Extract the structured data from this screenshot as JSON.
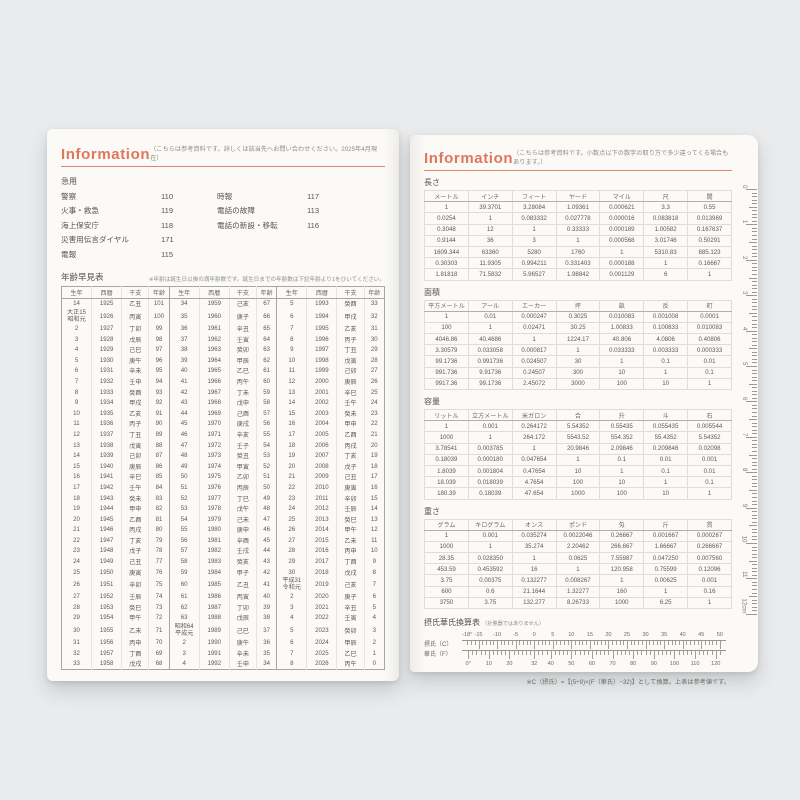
{
  "accent_color": "#e0765b",
  "background_color": "#e9ebec",
  "left_page": {
    "title": "Information",
    "note": "（こちらは参考資料です。詳しくは該当先へお問い合わせください。2025年4月現在）",
    "emergency": {
      "title": "急用",
      "items_left": [
        [
          "警察",
          "110"
        ],
        [
          "火事・救急",
          "119"
        ],
        [
          "海上保安庁",
          "118"
        ],
        [
          "災害用伝言ダイヤル",
          "171"
        ],
        [
          "電報",
          "115"
        ]
      ],
      "items_right": [
        [
          "時報",
          "117"
        ],
        [
          "電話の故障",
          "113"
        ],
        [
          "電話の新設・移転",
          "116"
        ]
      ]
    },
    "age_table": {
      "title": "年齢早見表",
      "note": "※年齢は誕生日以後の満年齢数です。誕生日までの年齢数は下記年齢より1をひいてください。",
      "headers": [
        "生年",
        "西暦",
        "干支",
        "年齢"
      ],
      "columns": [
        [
          [
            "14",
            "1925",
            "乙丑",
            "101"
          ],
          [
            "大正15\n昭和元",
            "1926",
            "丙寅",
            "100"
          ],
          [
            "2",
            "1927",
            "丁卯",
            "99"
          ],
          [
            "3",
            "1928",
            "戊辰",
            "98"
          ],
          [
            "4",
            "1929",
            "己巳",
            "97"
          ],
          [
            "5",
            "1930",
            "庚午",
            "96"
          ],
          [
            "6",
            "1931",
            "辛未",
            "95"
          ],
          [
            "7",
            "1932",
            "壬申",
            "94"
          ],
          [
            "8",
            "1933",
            "癸酉",
            "93"
          ],
          [
            "9",
            "1934",
            "甲戌",
            "92"
          ],
          [
            "10",
            "1935",
            "乙亥",
            "91"
          ],
          [
            "11",
            "1936",
            "丙子",
            "90"
          ],
          [
            "12",
            "1937",
            "丁丑",
            "89"
          ],
          [
            "13",
            "1938",
            "戊寅",
            "88"
          ],
          [
            "14",
            "1939",
            "己卯",
            "87"
          ],
          [
            "15",
            "1940",
            "庚辰",
            "86"
          ],
          [
            "16",
            "1941",
            "辛巳",
            "85"
          ],
          [
            "17",
            "1942",
            "壬午",
            "84"
          ],
          [
            "18",
            "1943",
            "癸未",
            "83"
          ],
          [
            "19",
            "1944",
            "甲申",
            "82"
          ],
          [
            "20",
            "1945",
            "乙酉",
            "81"
          ],
          [
            "21",
            "1946",
            "丙戌",
            "80"
          ],
          [
            "22",
            "1947",
            "丁亥",
            "79"
          ],
          [
            "23",
            "1948",
            "戊子",
            "78"
          ],
          [
            "24",
            "1949",
            "己丑",
            "77"
          ],
          [
            "25",
            "1950",
            "庚寅",
            "76"
          ],
          [
            "26",
            "1951",
            "辛卯",
            "75"
          ],
          [
            "27",
            "1952",
            "壬辰",
            "74"
          ],
          [
            "28",
            "1953",
            "癸巳",
            "73"
          ],
          [
            "29",
            "1954",
            "甲午",
            "72"
          ],
          [
            "30",
            "1955",
            "乙未",
            "71"
          ],
          [
            "31",
            "1956",
            "丙申",
            "70"
          ],
          [
            "32",
            "1957",
            "丁酉",
            "69"
          ],
          [
            "33",
            "1958",
            "戊戌",
            "68"
          ]
        ],
        [
          [
            "34",
            "1959",
            "己亥",
            "67"
          ],
          [
            "35",
            "1960",
            "庚子",
            "66"
          ],
          [
            "36",
            "1961",
            "辛丑",
            "65"
          ],
          [
            "37",
            "1962",
            "壬寅",
            "64"
          ],
          [
            "38",
            "1963",
            "癸卯",
            "63"
          ],
          [
            "39",
            "1964",
            "甲辰",
            "62"
          ],
          [
            "40",
            "1965",
            "乙巳",
            "61"
          ],
          [
            "41",
            "1966",
            "丙午",
            "60"
          ],
          [
            "42",
            "1967",
            "丁未",
            "59"
          ],
          [
            "43",
            "1968",
            "戊申",
            "58"
          ],
          [
            "44",
            "1969",
            "己酉",
            "57"
          ],
          [
            "45",
            "1970",
            "庚戌",
            "56"
          ],
          [
            "46",
            "1971",
            "辛亥",
            "55"
          ],
          [
            "47",
            "1972",
            "壬子",
            "54"
          ],
          [
            "48",
            "1973",
            "癸丑",
            "53"
          ],
          [
            "49",
            "1974",
            "甲寅",
            "52"
          ],
          [
            "50",
            "1975",
            "乙卯",
            "51"
          ],
          [
            "51",
            "1976",
            "丙辰",
            "50"
          ],
          [
            "52",
            "1977",
            "丁巳",
            "49"
          ],
          [
            "53",
            "1978",
            "戊午",
            "48"
          ],
          [
            "54",
            "1979",
            "己未",
            "47"
          ],
          [
            "55",
            "1980",
            "庚申",
            "46"
          ],
          [
            "56",
            "1981",
            "辛酉",
            "45"
          ],
          [
            "57",
            "1982",
            "壬戌",
            "44"
          ],
          [
            "58",
            "1983",
            "癸亥",
            "43"
          ],
          [
            "59",
            "1984",
            "甲子",
            "42"
          ],
          [
            "60",
            "1985",
            "乙丑",
            "41"
          ],
          [
            "61",
            "1986",
            "丙寅",
            "40"
          ],
          [
            "62",
            "1987",
            "丁卯",
            "39"
          ],
          [
            "63",
            "1988",
            "戊辰",
            "38"
          ],
          [
            "昭和64\n平成元",
            "1989",
            "己巳",
            "37"
          ],
          [
            "2",
            "1990",
            "庚午",
            "36"
          ],
          [
            "3",
            "1991",
            "辛未",
            "35"
          ],
          [
            "4",
            "1992",
            "壬申",
            "34"
          ]
        ],
        [
          [
            "5",
            "1993",
            "癸酉",
            "33"
          ],
          [
            "6",
            "1994",
            "甲戌",
            "32"
          ],
          [
            "7",
            "1995",
            "乙亥",
            "31"
          ],
          [
            "8",
            "1996",
            "丙子",
            "30"
          ],
          [
            "9",
            "1997",
            "丁丑",
            "29"
          ],
          [
            "10",
            "1998",
            "戊寅",
            "28"
          ],
          [
            "11",
            "1999",
            "己卯",
            "27"
          ],
          [
            "12",
            "2000",
            "庚辰",
            "26"
          ],
          [
            "13",
            "2001",
            "辛巳",
            "25"
          ],
          [
            "14",
            "2002",
            "壬午",
            "24"
          ],
          [
            "15",
            "2003",
            "癸未",
            "23"
          ],
          [
            "16",
            "2004",
            "甲申",
            "22"
          ],
          [
            "17",
            "2005",
            "乙酉",
            "21"
          ],
          [
            "18",
            "2006",
            "丙戌",
            "20"
          ],
          [
            "19",
            "2007",
            "丁亥",
            "19"
          ],
          [
            "20",
            "2008",
            "戊子",
            "18"
          ],
          [
            "21",
            "2009",
            "己丑",
            "17"
          ],
          [
            "22",
            "2010",
            "庚寅",
            "16"
          ],
          [
            "23",
            "2011",
            "辛卯",
            "15"
          ],
          [
            "24",
            "2012",
            "壬辰",
            "14"
          ],
          [
            "25",
            "2013",
            "癸巳",
            "13"
          ],
          [
            "26",
            "2014",
            "甲午",
            "12"
          ],
          [
            "27",
            "2015",
            "乙未",
            "11"
          ],
          [
            "28",
            "2016",
            "丙申",
            "10"
          ],
          [
            "29",
            "2017",
            "丁酉",
            "9"
          ],
          [
            "30",
            "2018",
            "戊戌",
            "8"
          ],
          [
            "平成31\n令和元",
            "2019",
            "己亥",
            "7"
          ],
          [
            "2",
            "2020",
            "庚子",
            "6"
          ],
          [
            "3",
            "2021",
            "辛丑",
            "5"
          ],
          [
            "4",
            "2022",
            "壬寅",
            "4"
          ],
          [
            "5",
            "2023",
            "癸卯",
            "3"
          ],
          [
            "6",
            "2024",
            "甲辰",
            "2"
          ],
          [
            "7",
            "2025",
            "乙巳",
            "1"
          ],
          [
            "8",
            "2026",
            "丙午",
            "0"
          ]
        ]
      ]
    }
  },
  "right_page": {
    "title": "Information",
    "note": "（こちらは参考資料です。小数点以下の数字の取り方で多少違ってくる場合もあります。）",
    "unit_tables": [
      {
        "title": "長さ",
        "headers": [
          "メートル",
          "インチ",
          "フィート",
          "ヤード",
          "マイル",
          "尺",
          "間"
        ],
        "rows": [
          [
            "1",
            "39.3701",
            "3.28084",
            "1.09361",
            "0.000621",
            "3.3",
            "0.55"
          ],
          [
            "0.0254",
            "1",
            "0.083332",
            "0.027778",
            "0.000016",
            "0.083818",
            "0.013969"
          ],
          [
            "0.3048",
            "12",
            "1",
            "0.33333",
            "0.000189",
            "1.00582",
            "0.167637"
          ],
          [
            "0.9144",
            "36",
            "3",
            "1",
            "0.000568",
            "3.01746",
            "0.50291"
          ],
          [
            "1609.344",
            "63360",
            "5280",
            "1760",
            "1",
            "5310.83",
            "885.123"
          ],
          [
            "0.30303",
            "11.9305",
            "0.994211",
            "0.331403",
            "0.000188",
            "1",
            "0.16667"
          ],
          [
            "1.81818",
            "71.5832",
            "5.96527",
            "1.98842",
            "0.001129",
            "6",
            "1"
          ]
        ]
      },
      {
        "title": "面積",
        "headers": [
          "平方メートル",
          "アール",
          "エーカー",
          "坪",
          "畝",
          "反",
          "町"
        ],
        "rows": [
          [
            "1",
            "0.01",
            "0.000247",
            "0.3025",
            "0.010083",
            "0.001008",
            "0.0001"
          ],
          [
            "100",
            "1",
            "0.02471",
            "30.25",
            "1.00833",
            "0.100833",
            "0.010083"
          ],
          [
            "4046.86",
            "40.4686",
            "1",
            "1224.17",
            "40.806",
            "4.0806",
            "0.40806"
          ],
          [
            "3.30579",
            "0.033058",
            "0.000817",
            "1",
            "0.033333",
            "0.003333",
            "0.000333"
          ],
          [
            "99.1736",
            "0.991736",
            "0.024507",
            "30",
            "1",
            "0.1",
            "0.01"
          ],
          [
            "991.736",
            "9.91736",
            "0.24507",
            "300",
            "10",
            "1",
            "0.1"
          ],
          [
            "9917.36",
            "99.1736",
            "2.45072",
            "3000",
            "100",
            "10",
            "1"
          ]
        ]
      },
      {
        "title": "容量",
        "headers": [
          "リットル",
          "立方メートル",
          "米ガロン",
          "合",
          "升",
          "斗",
          "石"
        ],
        "rows": [
          [
            "1",
            "0.001",
            "0.264172",
            "5.54352",
            "0.55435",
            "0.055435",
            "0.005544"
          ],
          [
            "1000",
            "1",
            "264.172",
            "5543.52",
            "554.352",
            "55.4352",
            "5.54352"
          ],
          [
            "3.78541",
            "0.003785",
            "1",
            "20.9846",
            "2.09846",
            "0.209846",
            "0.02098"
          ],
          [
            "0.18039",
            "0.000180",
            "0.047654",
            "1",
            "0.1",
            "0.01",
            "0.001"
          ],
          [
            "1.8039",
            "0.001804",
            "0.47654",
            "10",
            "1",
            "0.1",
            "0.01"
          ],
          [
            "18.039",
            "0.018039",
            "4.7654",
            "100",
            "10",
            "1",
            "0.1"
          ],
          [
            "180.39",
            "0.18039",
            "47.654",
            "1000",
            "100",
            "10",
            "1"
          ]
        ]
      },
      {
        "title": "重さ",
        "headers": [
          "グラム",
          "キログラム",
          "オンス",
          "ポンド",
          "匁",
          "斤",
          "貫"
        ],
        "rows": [
          [
            "1",
            "0.001",
            "0.035274",
            "0.0022046",
            "0.26667",
            "0.001667",
            "0.000267"
          ],
          [
            "1000",
            "1",
            "35.274",
            "2.20462",
            "266.667",
            "1.66667",
            "0.266667"
          ],
          [
            "28.35",
            "0.028350",
            "1",
            "0.0625",
            "7.55987",
            "0.047250",
            "0.007560"
          ],
          [
            "453.59",
            "0.453592",
            "16",
            "1",
            "120.958",
            "0.75599",
            "0.12096"
          ],
          [
            "3.75",
            "0.00375",
            "0.132277",
            "0.008267",
            "1",
            "0.00625",
            "0.001"
          ],
          [
            "600",
            "0.6",
            "21.1644",
            "1.32277",
            "160",
            "1",
            "0.16"
          ],
          [
            "3750",
            "3.75",
            "132.277",
            "8.26733",
            "1000",
            "6.25",
            "1"
          ]
        ]
      }
    ],
    "temp_scale": {
      "title": "摂氏華氏換算表",
      "title_note": "（計量器ではありません）",
      "c_row_label": "摂氏（C）",
      "f_row_label": "華氏（F）",
      "c_labels": [
        "-18°",
        "-15",
        "-10",
        "-5",
        "0",
        "5",
        "10",
        "15",
        "20",
        "25",
        "30",
        "35",
        "40",
        "45",
        "50"
      ],
      "f_labels": [
        "0°",
        "10",
        "20",
        "32",
        "40",
        "50",
        "60",
        "70",
        "80",
        "90",
        "100",
        "110",
        "120"
      ],
      "formula": "※C（摂氏）=【(5÷9)×(F（華氏）−32)】として換算。上表は参考値です。"
    },
    "ruler_labels": [
      "0",
      "1",
      "2",
      "3",
      "4",
      "5",
      "6",
      "7",
      "8",
      "9",
      "10",
      "11",
      "12cm"
    ]
  }
}
